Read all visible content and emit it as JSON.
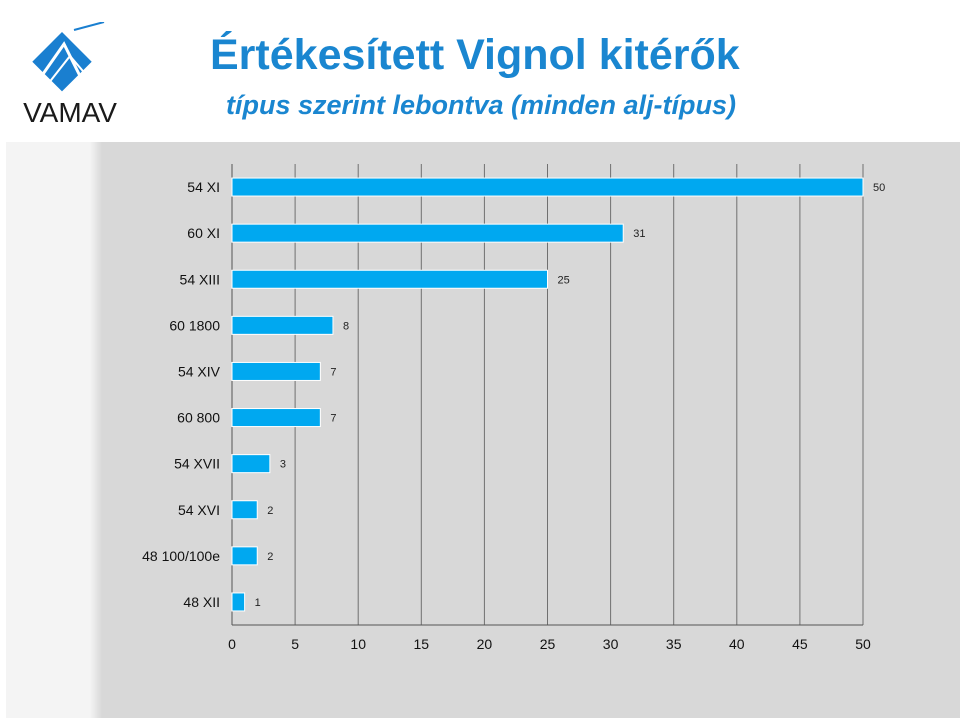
{
  "header": {
    "title": "Értékesített Vignol kitérők",
    "subtitle": "típus szerint lebontva (minden alj-típus)",
    "logo_text": "VAMAV"
  },
  "colors": {
    "accent": "#1a86d0",
    "bar": "#00a8f0",
    "logo_blue": "#1a7fd0"
  },
  "chart_data": {
    "type": "bar",
    "orientation": "horizontal",
    "title": "",
    "xlabel": "",
    "ylabel": "",
    "xlim": [
      0,
      50
    ],
    "x_ticks": [
      0,
      5,
      10,
      15,
      20,
      25,
      30,
      35,
      40,
      45,
      50
    ],
    "grid": true,
    "categories": [
      "54 XI",
      "60 XI",
      "54 XIII",
      "60 1800",
      "54 XIV",
      "60 800",
      "54 XVII",
      "54 XVI",
      "48 100/100e",
      "48 XII"
    ],
    "values": [
      50,
      31,
      25,
      8,
      7,
      7,
      3,
      2,
      2,
      1
    ]
  }
}
